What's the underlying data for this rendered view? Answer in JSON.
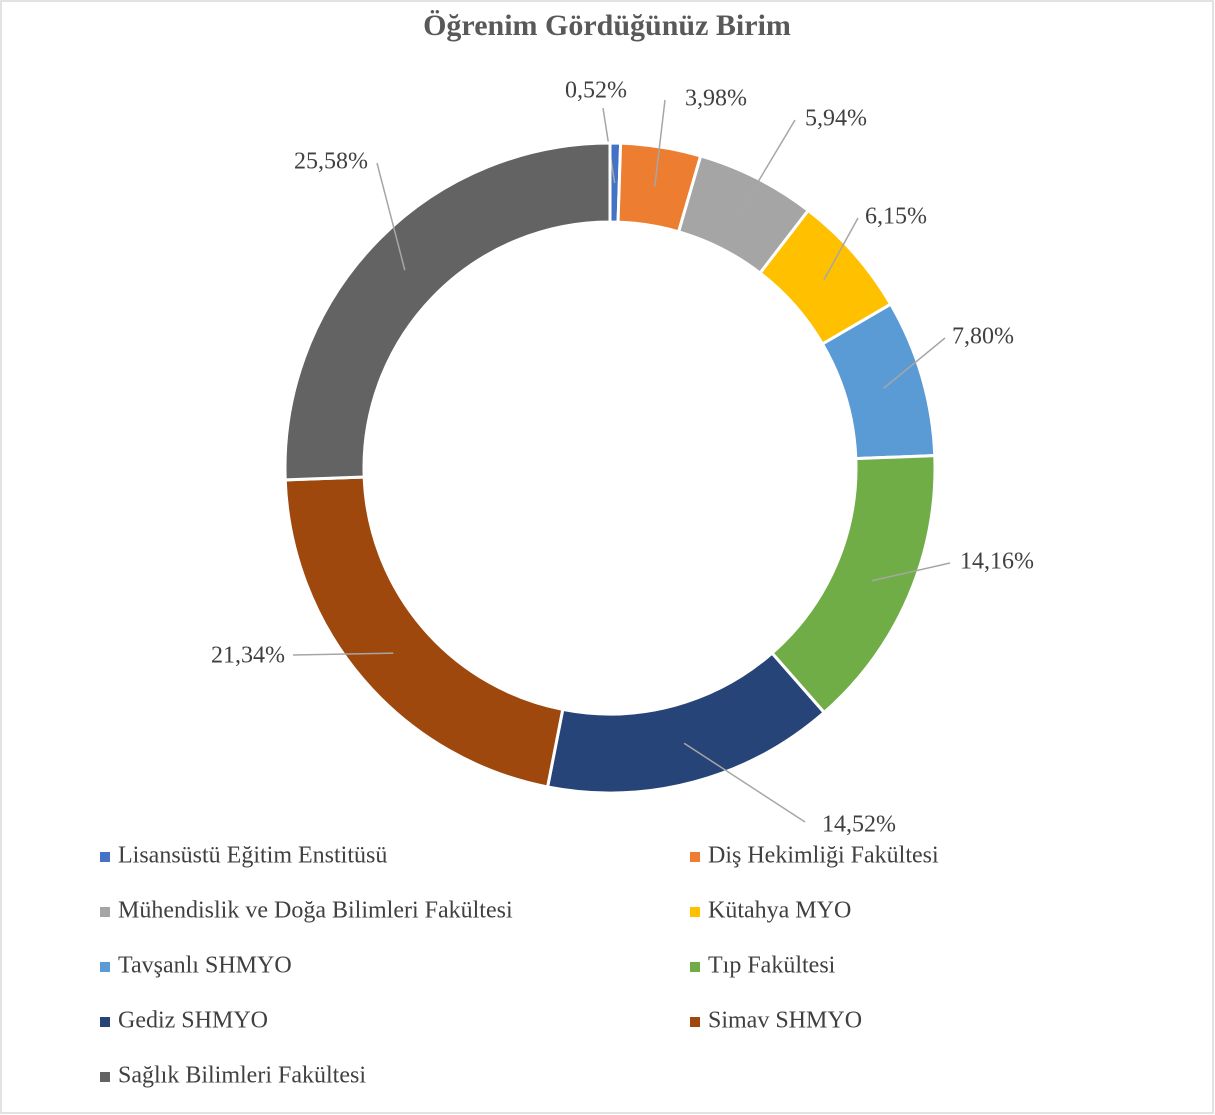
{
  "chart_data": {
    "type": "donut",
    "title": "Öğrenim Gördüğünüz Birim",
    "categories": [
      "Lisansüstü Eğitim Enstitüsü",
      "Diş Hekimliği Fakültesi",
      "Mühendislik ve Doğa Bilimleri Fakültesi",
      "Kütahya MYO",
      "Tavşanlı SHMYO",
      "Tıp Fakültesi",
      "Gediz SHMYO",
      "Simav SHMYO",
      "Sağlık Bilimleri Fakültesi"
    ],
    "values": [
      0.52,
      3.98,
      5.94,
      6.15,
      7.8,
      14.16,
      14.52,
      21.34,
      25.58
    ],
    "value_labels": [
      "0,52%",
      "3,98%",
      "5,94%",
      "6,15%",
      "7,80%",
      "14,16%",
      "14,52%",
      "21,34%",
      "25,58%"
    ],
    "colors": [
      "#4472c4",
      "#ed7d31",
      "#a5a5a5",
      "#ffc000",
      "#5b9bd5",
      "#70ad47",
      "#264478",
      "#9e480e",
      "#636363"
    ],
    "legend": "bottom"
  }
}
